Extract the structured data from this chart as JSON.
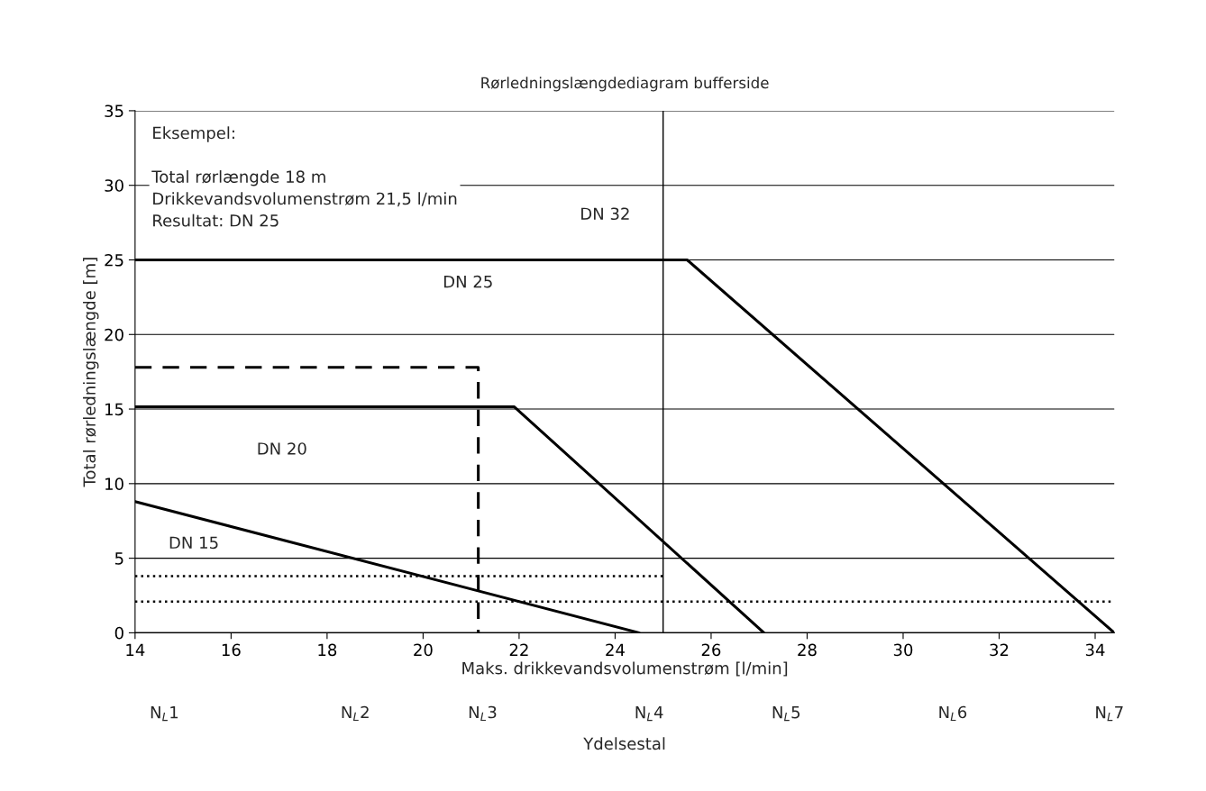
{
  "chart_data": {
    "type": "line",
    "title": "Rørledningslængdediagram bufferside",
    "xlabel": "Maks. drikkevandsvolumenstrøm [l/min]",
    "ylabel": "Total rørledningslængde [m]",
    "xlim": [
      14,
      34.4
    ],
    "xticks": [
      14,
      16,
      18,
      20,
      22,
      24,
      26,
      28,
      30,
      32,
      34
    ],
    "ylim": [
      0,
      35
    ],
    "yticks": [
      0,
      5,
      10,
      15,
      20,
      25,
      30,
      35
    ],
    "grid": "y",
    "marker": "none",
    "series": [
      {
        "color": "#000000",
        "x": [
          14,
          24.5
        ],
        "values": [
          8.8,
          0
        ],
        "line_style": "solid"
      },
      {
        "color": "#000000",
        "x": [
          14,
          21.9,
          27.1
        ],
        "values": [
          15.15,
          15.15,
          0
        ],
        "line_style": "solid"
      },
      {
        "color": "#000000",
        "x": [
          14,
          25.5,
          34.4
        ],
        "values": [
          25,
          25,
          0
        ],
        "line_style": "solid"
      },
      {
        "color": "#000000",
        "x": [
          14,
          21.15,
          21.15
        ],
        "values": [
          17.8,
          17.8,
          0
        ],
        "line_style": "dashed"
      },
      {
        "color": "#000000",
        "x": [
          14,
          25
        ],
        "values": [
          3.8,
          3.8
        ],
        "line_style": "dotted"
      },
      {
        "color": "#000000",
        "x": [
          14,
          34.4
        ],
        "values": [
          2.1,
          2.1
        ],
        "line_style": "dotted"
      }
    ],
    "ref_lines": [
      {
        "axis": "x",
        "value": 25,
        "label": null,
        "color": "#000000"
      }
    ],
    "annotations": [
      "Eksempel:\n\nTotal rørlængde 18 m\nDrikkevandsvolumenstrøm 21,5 l/min\nResultat: DN 25",
      "DN 32",
      "DN 25",
      "DN 20",
      "DN 15",
      "N$_{L}$1",
      "N$_{L}$2",
      "N$_{L}$3",
      "N$_{L}$4",
      "N$_{L}$5",
      "N$_{L}$6",
      "N$_{L}$7",
      "Ydelsestal"
    ]
  }
}
